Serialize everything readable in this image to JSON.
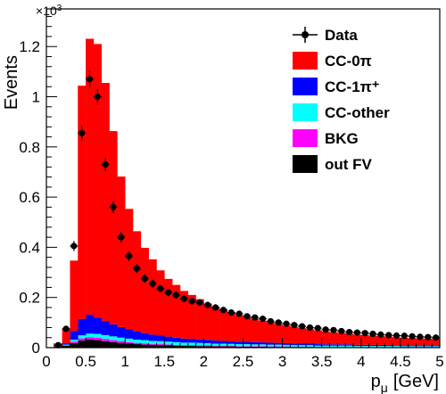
{
  "chart_data": {
    "type": "bar",
    "stacked": true,
    "xlabel_main": "p",
    "xlabel_sub": "μ",
    "xlabel_unit": "[GeV]",
    "ylabel": "Events",
    "y_multiplier_base": "×10",
    "y_multiplier_exp": "3",
    "xlim": [
      0,
      5
    ],
    "ylim": [
      0,
      1.35
    ],
    "x_ticks": [
      0,
      0.5,
      1,
      1.5,
      2,
      2.5,
      3,
      3.5,
      4,
      4.5,
      5
    ],
    "x_tick_labels": [
      "0",
      "0.5",
      "1",
      "1.5",
      "2",
      "2.5",
      "3",
      "3.5",
      "4",
      "4.5",
      "5"
    ],
    "y_ticks": [
      0,
      0.2,
      0.4,
      0.6,
      0.8,
      1.0,
      1.2
    ],
    "y_tick_labels": [
      "0",
      "0.2",
      "0.4",
      "0.6",
      "0.8",
      "1",
      "1.2"
    ],
    "bin_edges": [
      0.0,
      0.1,
      0.2,
      0.3,
      0.4,
      0.5,
      0.6,
      0.7,
      0.8,
      0.9,
      1.0,
      1.1,
      1.2,
      1.3,
      1.4,
      1.5,
      1.6,
      1.7,
      1.8,
      1.9,
      2.0,
      2.1,
      2.2,
      2.3,
      2.4,
      2.5,
      2.6,
      2.7,
      2.8,
      2.9,
      3.0,
      3.1,
      3.2,
      3.3,
      3.4,
      3.5,
      3.6,
      3.7,
      3.8,
      3.9,
      4.0,
      4.1,
      4.2,
      4.3,
      4.4,
      4.5,
      4.6,
      4.7,
      4.8,
      4.9,
      5.0
    ],
    "stack_order": [
      "out FV",
      "BKG",
      "CC-other",
      "CC-1π⁺",
      "CC-0π"
    ],
    "series": [
      {
        "name": "CC-0π",
        "color": "#ff0000",
        "values": [
          0.0,
          0.005,
          0.06,
          0.28,
          0.93,
          1.1,
          1.09,
          0.95,
          0.77,
          0.6,
          0.48,
          0.4,
          0.34,
          0.3,
          0.26,
          0.23,
          0.21,
          0.19,
          0.175,
          0.16,
          0.145,
          0.135,
          0.125,
          0.115,
          0.105,
          0.098,
          0.092,
          0.086,
          0.08,
          0.075,
          0.07,
          0.066,
          0.062,
          0.058,
          0.055,
          0.052,
          0.049,
          0.046,
          0.043,
          0.041,
          0.039,
          0.037,
          0.035,
          0.033,
          0.031,
          0.03,
          0.029,
          0.028,
          0.027,
          0.026
        ]
      },
      {
        "name": "CC-1π⁺",
        "color": "#0000ff",
        "values": [
          0.0,
          0.0,
          0.004,
          0.035,
          0.065,
          0.075,
          0.065,
          0.055,
          0.048,
          0.042,
          0.037,
          0.032,
          0.028,
          0.025,
          0.022,
          0.02,
          0.018,
          0.016,
          0.015,
          0.014,
          0.013,
          0.012,
          0.011,
          0.01,
          0.01,
          0.009,
          0.009,
          0.008,
          0.008,
          0.007,
          0.007,
          0.007,
          0.006,
          0.006,
          0.006,
          0.005,
          0.005,
          0.005,
          0.005,
          0.004,
          0.004,
          0.004,
          0.004,
          0.004,
          0.003,
          0.003,
          0.003,
          0.003,
          0.003,
          0.003
        ]
      },
      {
        "name": "CC-other",
        "color": "#00ffff",
        "values": [
          0.0,
          0.0,
          0.002,
          0.008,
          0.012,
          0.014,
          0.015,
          0.015,
          0.015,
          0.014,
          0.014,
          0.013,
          0.013,
          0.012,
          0.012,
          0.011,
          0.011,
          0.01,
          0.01,
          0.01,
          0.009,
          0.009,
          0.009,
          0.008,
          0.008,
          0.008,
          0.007,
          0.007,
          0.007,
          0.007,
          0.006,
          0.006,
          0.006,
          0.006,
          0.005,
          0.005,
          0.005,
          0.005,
          0.005,
          0.004,
          0.004,
          0.004,
          0.004,
          0.004,
          0.004,
          0.003,
          0.003,
          0.003,
          0.003,
          0.003
        ]
      },
      {
        "name": "BKG",
        "color": "#ff00ff",
        "values": [
          0.0,
          0.0,
          0.002,
          0.006,
          0.009,
          0.01,
          0.01,
          0.009,
          0.008,
          0.007,
          0.006,
          0.005,
          0.005,
          0.004,
          0.004,
          0.004,
          0.003,
          0.003,
          0.003,
          0.003,
          0.003,
          0.002,
          0.002,
          0.002,
          0.002,
          0.002,
          0.002,
          0.002,
          0.002,
          0.002,
          0.002,
          0.001,
          0.001,
          0.001,
          0.001,
          0.001,
          0.001,
          0.001,
          0.001,
          0.001,
          0.001,
          0.001,
          0.001,
          0.001,
          0.001,
          0.001,
          0.001,
          0.001,
          0.001,
          0.001
        ]
      },
      {
        "name": "out FV",
        "color": "#000000",
        "values": [
          0.0,
          0.003,
          0.008,
          0.018,
          0.028,
          0.032,
          0.03,
          0.026,
          0.022,
          0.019,
          0.016,
          0.014,
          0.012,
          0.011,
          0.01,
          0.009,
          0.008,
          0.007,
          0.007,
          0.006,
          0.006,
          0.005,
          0.005,
          0.005,
          0.004,
          0.004,
          0.004,
          0.004,
          0.003,
          0.003,
          0.003,
          0.003,
          0.003,
          0.003,
          0.002,
          0.002,
          0.002,
          0.002,
          0.002,
          0.002,
          0.002,
          0.002,
          0.002,
          0.002,
          0.002,
          0.002,
          0.002,
          0.002,
          0.002,
          0.002
        ]
      }
    ],
    "data_points": {
      "name": "Data",
      "x": [
        0.15,
        0.25,
        0.35,
        0.45,
        0.55,
        0.65,
        0.75,
        0.85,
        0.95,
        1.05,
        1.15,
        1.25,
        1.35,
        1.45,
        1.55,
        1.65,
        1.75,
        1.85,
        1.95,
        2.05,
        2.15,
        2.25,
        2.35,
        2.45,
        2.55,
        2.65,
        2.75,
        2.85,
        2.95,
        3.05,
        3.15,
        3.25,
        3.35,
        3.45,
        3.55,
        3.65,
        3.75,
        3.85,
        3.95,
        4.05,
        4.15,
        4.25,
        4.35,
        4.45,
        4.55,
        4.65,
        4.75,
        4.85,
        4.95
      ],
      "y": [
        0.01,
        0.075,
        0.405,
        0.855,
        1.07,
        1.0,
        0.73,
        0.56,
        0.44,
        0.365,
        0.315,
        0.275,
        0.255,
        0.235,
        0.22,
        0.21,
        0.195,
        0.185,
        0.18,
        0.17,
        0.16,
        0.15,
        0.14,
        0.135,
        0.125,
        0.12,
        0.115,
        0.105,
        0.1,
        0.095,
        0.09,
        0.085,
        0.08,
        0.078,
        0.072,
        0.07,
        0.066,
        0.062,
        0.06,
        0.058,
        0.055,
        0.052,
        0.05,
        0.048,
        0.047,
        0.045,
        0.043,
        0.042,
        0.04
      ],
      "yerr": [
        0.004,
        0.01,
        0.02,
        0.03,
        0.033,
        0.032,
        0.027,
        0.024,
        0.021,
        0.019,
        0.018,
        0.017,
        0.016,
        0.015,
        0.015,
        0.015,
        0.014,
        0.014,
        0.013,
        0.013,
        0.013,
        0.012,
        0.012,
        0.012,
        0.011,
        0.011,
        0.011,
        0.01,
        0.01,
        0.01,
        0.01,
        0.009,
        0.009,
        0.009,
        0.009,
        0.008,
        0.008,
        0.008,
        0.008,
        0.008,
        0.007,
        0.007,
        0.007,
        0.007,
        0.007,
        0.007,
        0.007,
        0.006,
        0.006
      ]
    },
    "legend": [
      {
        "label": "Data",
        "kind": "marker",
        "color": "#000000"
      },
      {
        "label": "CC-0π",
        "kind": "box",
        "color": "#ff0000"
      },
      {
        "label": "CC-1π⁺",
        "kind": "box",
        "color": "#0000ff"
      },
      {
        "label": "CC-other",
        "kind": "box",
        "color": "#00ffff"
      },
      {
        "label": "BKG",
        "kind": "box",
        "color": "#ff00ff"
      },
      {
        "label": "out FV",
        "kind": "box",
        "color": "#000000"
      }
    ],
    "legend_position": "top-right",
    "grid": false
  }
}
